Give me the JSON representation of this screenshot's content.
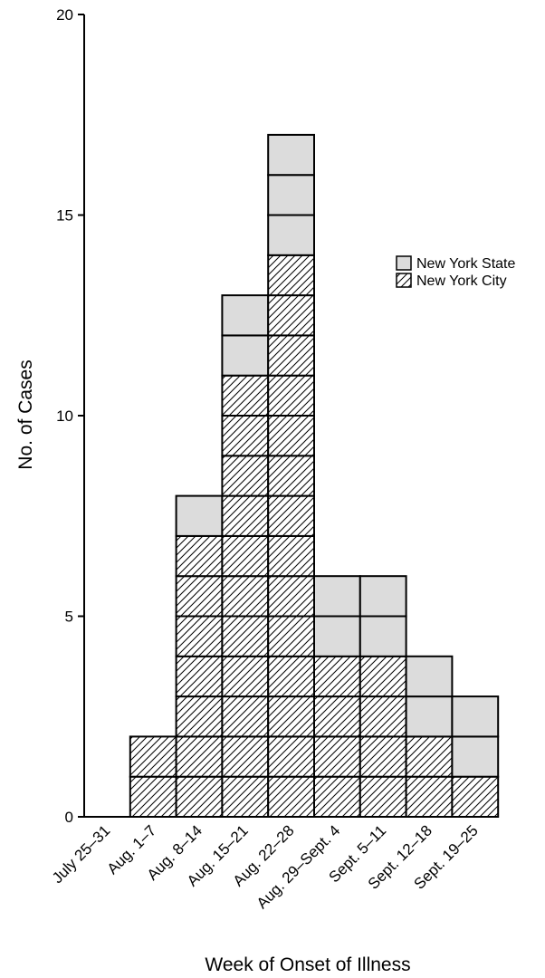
{
  "chart_data": {
    "type": "bar",
    "stacked": true,
    "style": "unit-block histogram (one block per case)",
    "categories": [
      "July 25–31",
      "Aug. 1–7",
      "Aug. 8–14",
      "Aug. 15–21",
      "Aug. 22–28",
      "Aug. 29–Sept. 4",
      "Sept. 5–11",
      "Sept. 12–18",
      "Sept. 19–25"
    ],
    "series": [
      {
        "name": "New York City",
        "values": [
          0,
          2,
          7,
          11,
          14,
          4,
          4,
          2,
          1
        ],
        "fill": "hatched",
        "color": "#ffffff"
      },
      {
        "name": "New York State",
        "values": [
          0,
          0,
          1,
          2,
          3,
          2,
          2,
          2,
          2
        ],
        "fill": "solid",
        "color": "#dcdcdc"
      }
    ],
    "title": "",
    "xlabel": "Week of Onset of Illness",
    "ylabel": "No. of Cases",
    "ylim": [
      0,
      20
    ],
    "yticks": [
      0,
      5,
      10,
      15,
      20
    ],
    "grid": false,
    "legend_position": "right"
  }
}
